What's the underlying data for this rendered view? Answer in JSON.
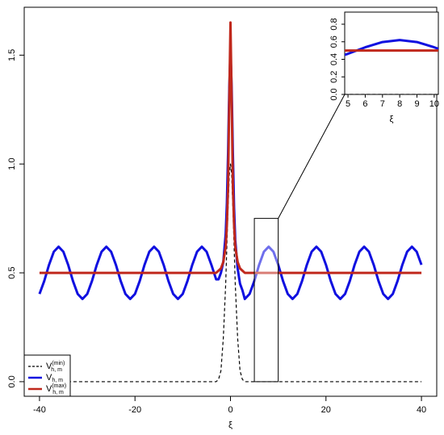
{
  "chart_data": {
    "type": "line",
    "x_label": "ξ",
    "x": [
      -40,
      -39,
      -38,
      -37,
      -36,
      -35,
      -34,
      -33,
      -32,
      -31,
      -30,
      -29,
      -28,
      -27,
      -26,
      -25,
      -24,
      -23,
      -22,
      -21,
      -20,
      -19,
      -18,
      -17,
      -16,
      -15,
      -14,
      -13,
      -12,
      -11,
      -10,
      -9,
      -8,
      -7,
      -6,
      -5,
      -4,
      -3,
      -2.5,
      -2,
      -1.5,
      -1,
      -0.75,
      -0.5,
      -0.25,
      0,
      0.25,
      0.5,
      0.75,
      1,
      1.5,
      2,
      2.5,
      3,
      4,
      5,
      6,
      7,
      8,
      9,
      10,
      11,
      12,
      13,
      14,
      15,
      16,
      17,
      18,
      19,
      20,
      21,
      22,
      23,
      24,
      25,
      26,
      27,
      28,
      29,
      30,
      31,
      32,
      33,
      34,
      35,
      36,
      37,
      38,
      39,
      40
    ],
    "series": [
      {
        "name": "V",
        "subscript": "h, m",
        "superscript": "(min)",
        "color": "#000000",
        "dash": true,
        "values": [
          0,
          0,
          0,
          0,
          0,
          0,
          0,
          0,
          0,
          0,
          0,
          0,
          0,
          0,
          0,
          0,
          0,
          0,
          0,
          0,
          0,
          0,
          0,
          0,
          0,
          0,
          0,
          0,
          0,
          0,
          0,
          0,
          0,
          0,
          0,
          0,
          0,
          0,
          0.01,
          0.05,
          0.2,
          0.45,
          0.63,
          0.8,
          0.95,
          1.0,
          0.95,
          0.8,
          0.63,
          0.45,
          0.2,
          0.05,
          0.01,
          0,
          0,
          0,
          0,
          0,
          0,
          0,
          0,
          0,
          0,
          0,
          0,
          0,
          0,
          0,
          0,
          0,
          0,
          0,
          0,
          0,
          0,
          0,
          0,
          0,
          0,
          0,
          0,
          0,
          0,
          0,
          0,
          0,
          0,
          0,
          0,
          0,
          0
        ]
      },
      {
        "name": "V",
        "subscript": "h, m",
        "color": "#1010e0",
        "dash": false,
        "values": [
          0.403,
          0.463,
          0.537,
          0.597,
          0.62,
          0.597,
          0.537,
          0.463,
          0.403,
          0.38,
          0.403,
          0.463,
          0.537,
          0.597,
          0.62,
          0.597,
          0.537,
          0.463,
          0.403,
          0.38,
          0.403,
          0.463,
          0.537,
          0.597,
          0.62,
          0.597,
          0.537,
          0.463,
          0.403,
          0.38,
          0.403,
          0.463,
          0.537,
          0.597,
          0.62,
          0.597,
          0.537,
          0.47,
          0.47,
          0.5,
          0.55,
          0.68,
          0.82,
          1.05,
          1.35,
          1.52,
          1.35,
          1.05,
          0.8,
          0.65,
          0.52,
          0.45,
          0.42,
          0.38,
          0.403,
          0.463,
          0.537,
          0.597,
          0.62,
          0.597,
          0.537,
          0.463,
          0.403,
          0.38,
          0.403,
          0.463,
          0.537,
          0.597,
          0.62,
          0.597,
          0.537,
          0.463,
          0.403,
          0.38,
          0.403,
          0.463,
          0.537,
          0.597,
          0.62,
          0.597,
          0.537,
          0.463,
          0.403,
          0.38,
          0.403,
          0.463,
          0.537,
          0.597,
          0.62,
          0.597,
          0.537
        ]
      },
      {
        "name": "V",
        "subscript": "h, m",
        "superscript": "(max)",
        "color": "#c0281c",
        "dash": false,
        "values": [
          0.5,
          0.5,
          0.5,
          0.5,
          0.5,
          0.5,
          0.5,
          0.5,
          0.5,
          0.5,
          0.5,
          0.5,
          0.5,
          0.5,
          0.5,
          0.5,
          0.5,
          0.5,
          0.5,
          0.5,
          0.5,
          0.5,
          0.5,
          0.5,
          0.5,
          0.5,
          0.5,
          0.5,
          0.5,
          0.5,
          0.5,
          0.5,
          0.5,
          0.5,
          0.5,
          0.5,
          0.5,
          0.5,
          0.51,
          0.52,
          0.55,
          0.62,
          0.72,
          0.9,
          1.3,
          1.65,
          1.3,
          0.9,
          0.72,
          0.62,
          0.55,
          0.52,
          0.51,
          0.5,
          0.5,
          0.5,
          0.5,
          0.5,
          0.5,
          0.5,
          0.5,
          0.5,
          0.5,
          0.5,
          0.5,
          0.5,
          0.5,
          0.5,
          0.5,
          0.5,
          0.5,
          0.5,
          0.5,
          0.5,
          0.5,
          0.5,
          0.5,
          0.5,
          0.5,
          0.5,
          0.5,
          0.5,
          0.5,
          0.5,
          0.5,
          0.5,
          0.5,
          0.5,
          0.5,
          0.5,
          0.5
        ]
      }
    ],
    "xlim": [
      -43.2,
      43.2
    ],
    "xticks": [
      -40,
      -20,
      0,
      20,
      40
    ],
    "ylim": [
      -0.067,
      1.72
    ],
    "yticks": [
      {
        "value": 0,
        "label": "0.0"
      },
      0.5,
      {
        "value": 1,
        "label": "1.0"
      },
      1.5
    ],
    "legend": "bottom-left",
    "zoom_box": {
      "xlim": [
        5,
        10
      ],
      "ylim": [
        0,
        0.75
      ]
    },
    "inset": {
      "x_label": "ξ",
      "xlim": [
        4.81,
        10.24
      ],
      "ylim": [
        0,
        0.938
      ],
      "xticks": [
        5,
        6,
        7,
        8,
        9,
        10
      ],
      "yticks": [
        {
          "value": 0,
          "label": "0.0"
        },
        0.2,
        0.4,
        0.6,
        0.8
      ]
    }
  }
}
